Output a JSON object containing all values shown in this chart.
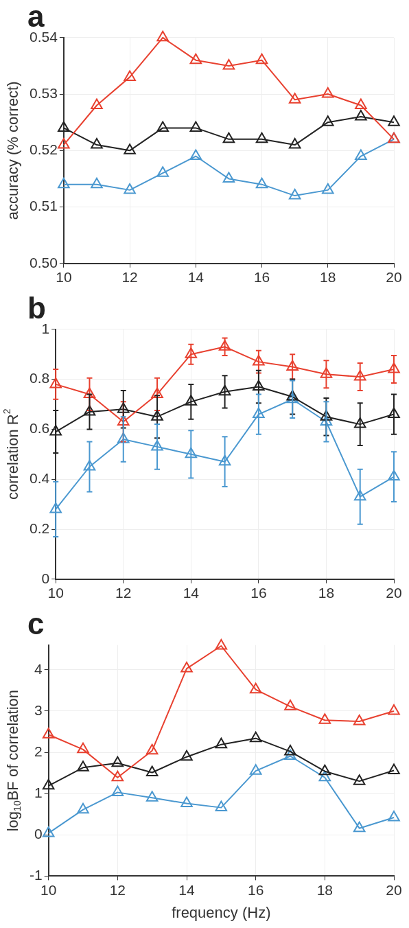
{
  "chart_data": [
    {
      "type": "line",
      "title": "a",
      "ylabel": "accuracy (% correct)",
      "x": [
        10,
        11,
        12,
        13,
        14,
        15,
        16,
        17,
        18,
        19,
        20
      ],
      "xlim": [
        10,
        20
      ],
      "xticks": [
        10,
        12,
        14,
        16,
        18,
        20
      ],
      "ylim": [
        0.5,
        0.54
      ],
      "yticks": [
        {
          "value": 0.5,
          "label": "0.50"
        },
        0.51,
        0.52,
        0.53,
        0.54
      ],
      "grid": true,
      "legend": false,
      "marker": "triangle",
      "line_style": "solid",
      "series": [
        {
          "color": "#e8402f",
          "values": [
            0.521,
            0.528,
            0.533,
            0.54,
            0.536,
            0.535,
            0.536,
            0.529,
            0.53,
            0.528,
            0.522
          ]
        },
        {
          "color": "#222222",
          "values": [
            0.524,
            0.521,
            0.52,
            0.524,
            0.524,
            0.522,
            0.522,
            0.521,
            0.525,
            0.526,
            0.525
          ]
        },
        {
          "color": "#4a98d0",
          "values": [
            0.514,
            0.514,
            0.513,
            0.516,
            0.519,
            0.515,
            0.514,
            0.512,
            0.513,
            0.519,
            0.522
          ]
        }
      ]
    },
    {
      "type": "line",
      "title": "b",
      "ylabel": "correlation R$^{2}$",
      "x": [
        10,
        11,
        12,
        13,
        14,
        15,
        16,
        17,
        18,
        19,
        20
      ],
      "xlim": [
        10,
        20
      ],
      "xticks": [
        10,
        12,
        14,
        16,
        18,
        20
      ],
      "ylim": [
        0,
        1
      ],
      "yticks": [
        0,
        0.2,
        0.4,
        0.6,
        0.8,
        1
      ],
      "grid": true,
      "legend": false,
      "marker": "triangle",
      "line_style": "solid",
      "series": [
        {
          "color": "#e8402f",
          "values": [
            0.78,
            0.74,
            0.63,
            0.74,
            0.9,
            0.93,
            0.87,
            0.85,
            0.82,
            0.81,
            0.84
          ],
          "errors": [
            0.06,
            0.065,
            0.08,
            0.065,
            0.04,
            0.035,
            0.045,
            0.05,
            0.055,
            0.055,
            0.055
          ]
        },
        {
          "color": "#222222",
          "values": [
            0.59,
            0.67,
            0.68,
            0.65,
            0.71,
            0.75,
            0.77,
            0.73,
            0.65,
            0.62,
            0.66
          ],
          "errors": [
            0.085,
            0.07,
            0.075,
            0.085,
            0.07,
            0.065,
            0.065,
            0.07,
            0.075,
            0.085,
            0.08
          ]
        },
        {
          "color": "#4a98d0",
          "values": [
            0.28,
            0.45,
            0.56,
            0.53,
            0.5,
            0.47,
            0.66,
            0.72,
            0.63,
            0.33,
            0.41
          ],
          "errors": [
            0.11,
            0.1,
            0.09,
            0.09,
            0.095,
            0.1,
            0.08,
            0.075,
            0.08,
            0.11,
            0.1
          ]
        }
      ]
    },
    {
      "type": "line",
      "title": "c",
      "xlabel": "frequency (Hz)",
      "ylabel": "log$_{10}$BF of correlation",
      "x": [
        10,
        11,
        12,
        13,
        14,
        15,
        16,
        17,
        18,
        19,
        20
      ],
      "xlim": [
        10,
        20
      ],
      "xticks": [
        10,
        12,
        14,
        16,
        18,
        20
      ],
      "ylim": [
        -1,
        4.6
      ],
      "yticks": [
        -1,
        0,
        1,
        2,
        3,
        4
      ],
      "grid": true,
      "legend": false,
      "marker": "triangle",
      "line_style": "solid",
      "series": [
        {
          "color": "#e8402f",
          "values": [
            2.43,
            2.07,
            1.39,
            2.04,
            4.03,
            4.58,
            3.52,
            3.11,
            2.78,
            2.75,
            3.0
          ]
        },
        {
          "color": "#222222",
          "values": [
            1.19,
            1.63,
            1.74,
            1.51,
            1.89,
            2.19,
            2.34,
            2.02,
            1.54,
            1.3,
            1.56
          ]
        },
        {
          "color": "#4a98d0",
          "values": [
            0.04,
            0.61,
            1.03,
            0.9,
            0.76,
            0.66,
            1.55,
            1.91,
            1.39,
            0.16,
            0.42
          ]
        }
      ]
    }
  ]
}
